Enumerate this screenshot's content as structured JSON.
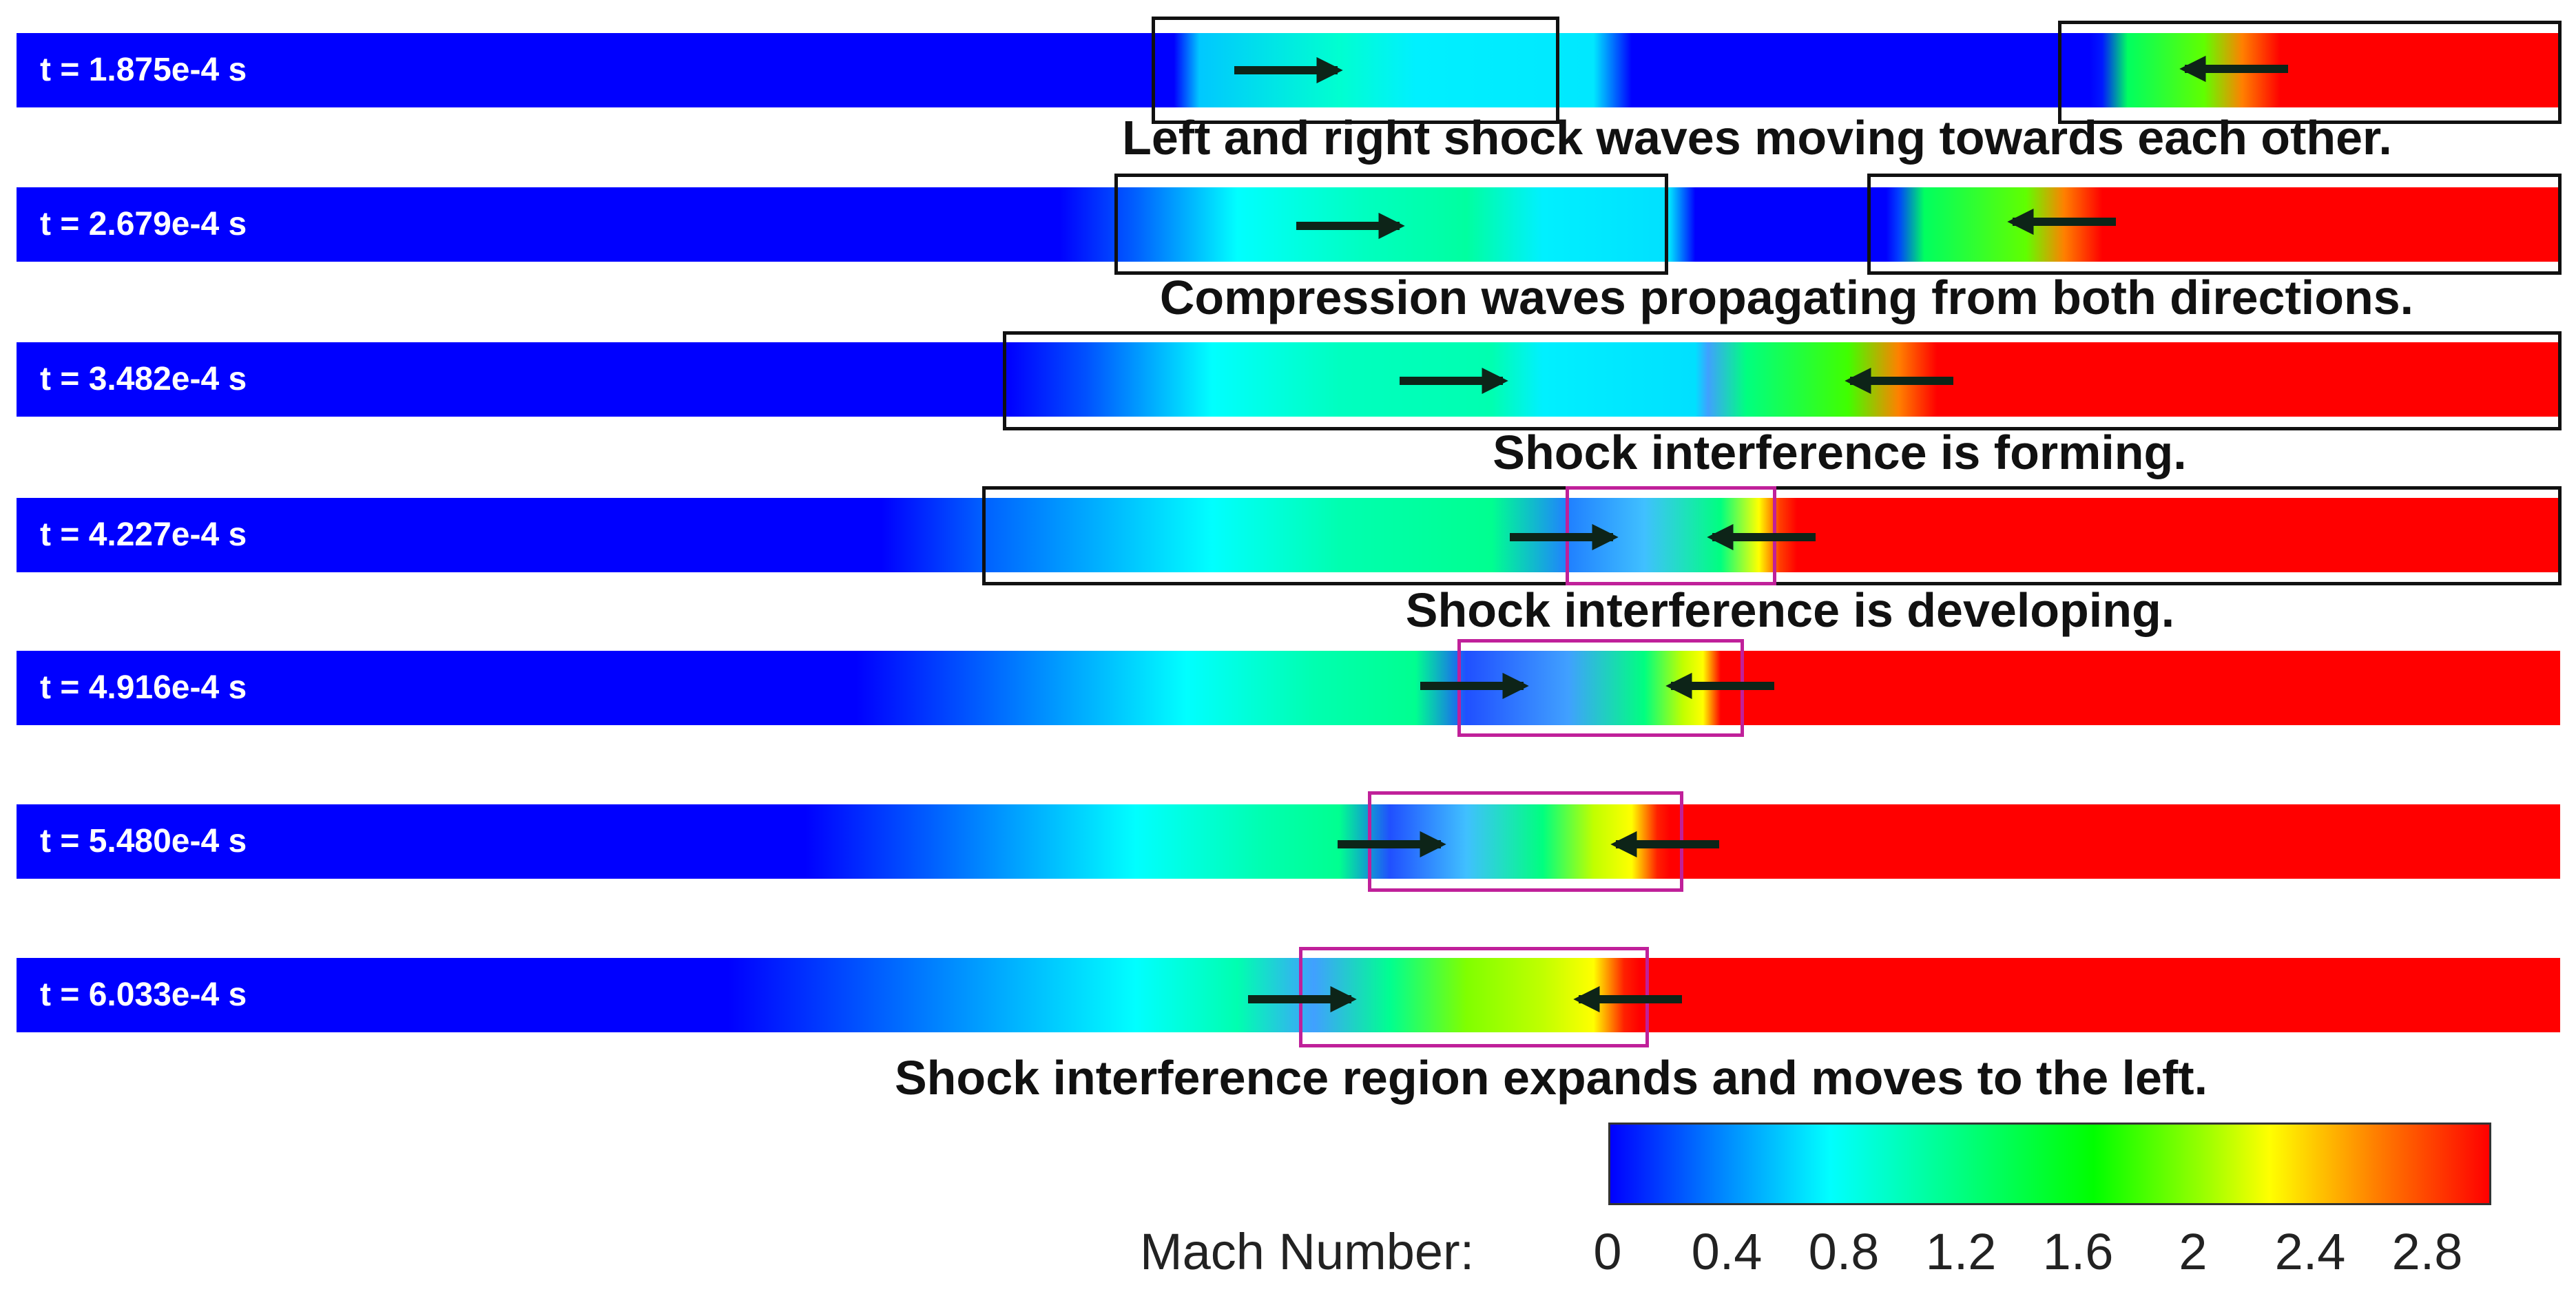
{
  "frames": [
    {
      "time_label": "t = 1.875e-4 s",
      "caption": "Left and right shock waves moving towards each other."
    },
    {
      "time_label": "t = 2.679e-4 s",
      "caption": "Compression waves propagating from both directions."
    },
    {
      "time_label": "t = 3.482e-4 s",
      "caption": "Shock interference is forming."
    },
    {
      "time_label": "t = 4.227e-4 s",
      "caption": "Shock interference is developing."
    },
    {
      "time_label": "t = 4.916e-4 s",
      "caption": ""
    },
    {
      "time_label": "t = 5.480e-4 s",
      "caption": ""
    },
    {
      "time_label": "t = 6.033e-4 s",
      "caption": "Shock interference region expands and moves to the left."
    }
  ],
  "colorbar": {
    "title": "Mach Number:",
    "ticks": [
      "0",
      "0.4",
      "0.8",
      "1.2",
      "1.6",
      "2",
      "2.4",
      "2.8"
    ],
    "colors": [
      "#0000ff",
      "#00ffff",
      "#00ff00",
      "#ffff00",
      "#ff0000"
    ]
  },
  "colors": {
    "low": "#0000ff",
    "mid_low": "#00e5ff",
    "mid": "#00ff80",
    "mid_high": "#80ff00",
    "high": "#ff0000",
    "box_black": "#111111",
    "box_magenta": "#c0209a",
    "arrow": "#0d2418"
  }
}
